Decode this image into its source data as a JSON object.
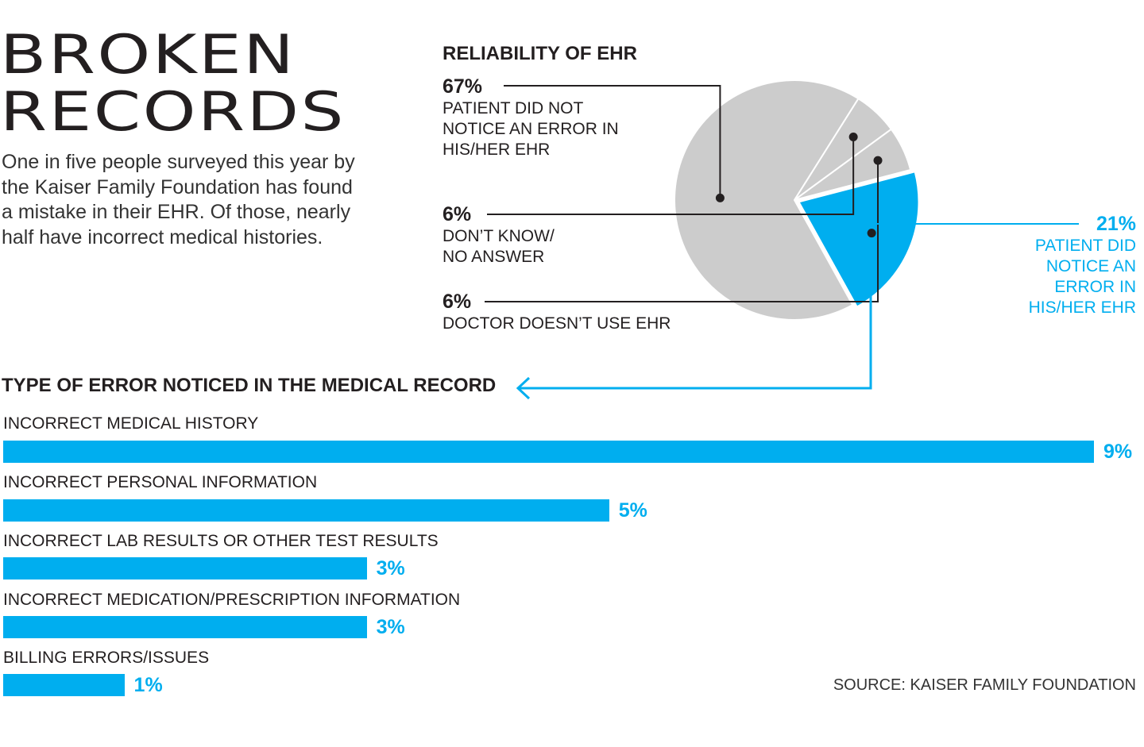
{
  "header": {
    "title_line1": "BROKEN",
    "title_line2": "RECORDS",
    "intro": "One in five people surveyed this year by the Kaiser Family Foundation has found a mistake in their EHR. Of those, nearly half have incorrect medical histories."
  },
  "colors": {
    "accent": "#00aeef",
    "pie_gray": "#cccccc",
    "text": "#231f20"
  },
  "chart_data": [
    {
      "type": "pie",
      "title": "RELIABILITY OF EHR",
      "slices": [
        {
          "pct_label": "67%",
          "label": "PATIENT DID NOT NOTICE AN ERROR IN HIS/HER EHR",
          "value": 67,
          "color": "#cccccc"
        },
        {
          "pct_label": "6%",
          "label": "DON’T KNOW/ NO ANSWER",
          "value": 6,
          "color": "#cccccc"
        },
        {
          "pct_label": "6%",
          "label": "DOCTOR DOESN’T USE EHR",
          "value": 6,
          "color": "#cccccc"
        },
        {
          "pct_label": "21%",
          "label": "PATIENT DID NOTICE AN ERROR IN HIS/HER EHR",
          "value": 21,
          "color": "#00aeef"
        }
      ]
    },
    {
      "type": "bar",
      "title": "TYPE OF ERROR NOTICED IN THE MEDICAL RECORD",
      "categories": [
        "INCORRECT MEDICAL HISTORY",
        "INCORRECT PERSONAL INFORMATION",
        "INCORRECT LAB RESULTS OR OTHER TEST RESULTS",
        "INCORRECT MEDICATION/PRESCRIPTION INFORMATION",
        "BILLING ERRORS/ISSUES"
      ],
      "values": [
        9,
        5,
        3,
        3,
        1
      ],
      "value_labels": [
        "9%",
        "5%",
        "3%",
        "3%",
        "1%"
      ],
      "xlim": [
        0,
        9
      ]
    }
  ],
  "source": "SOURCE: KAISER FAMILY FOUNDATION"
}
